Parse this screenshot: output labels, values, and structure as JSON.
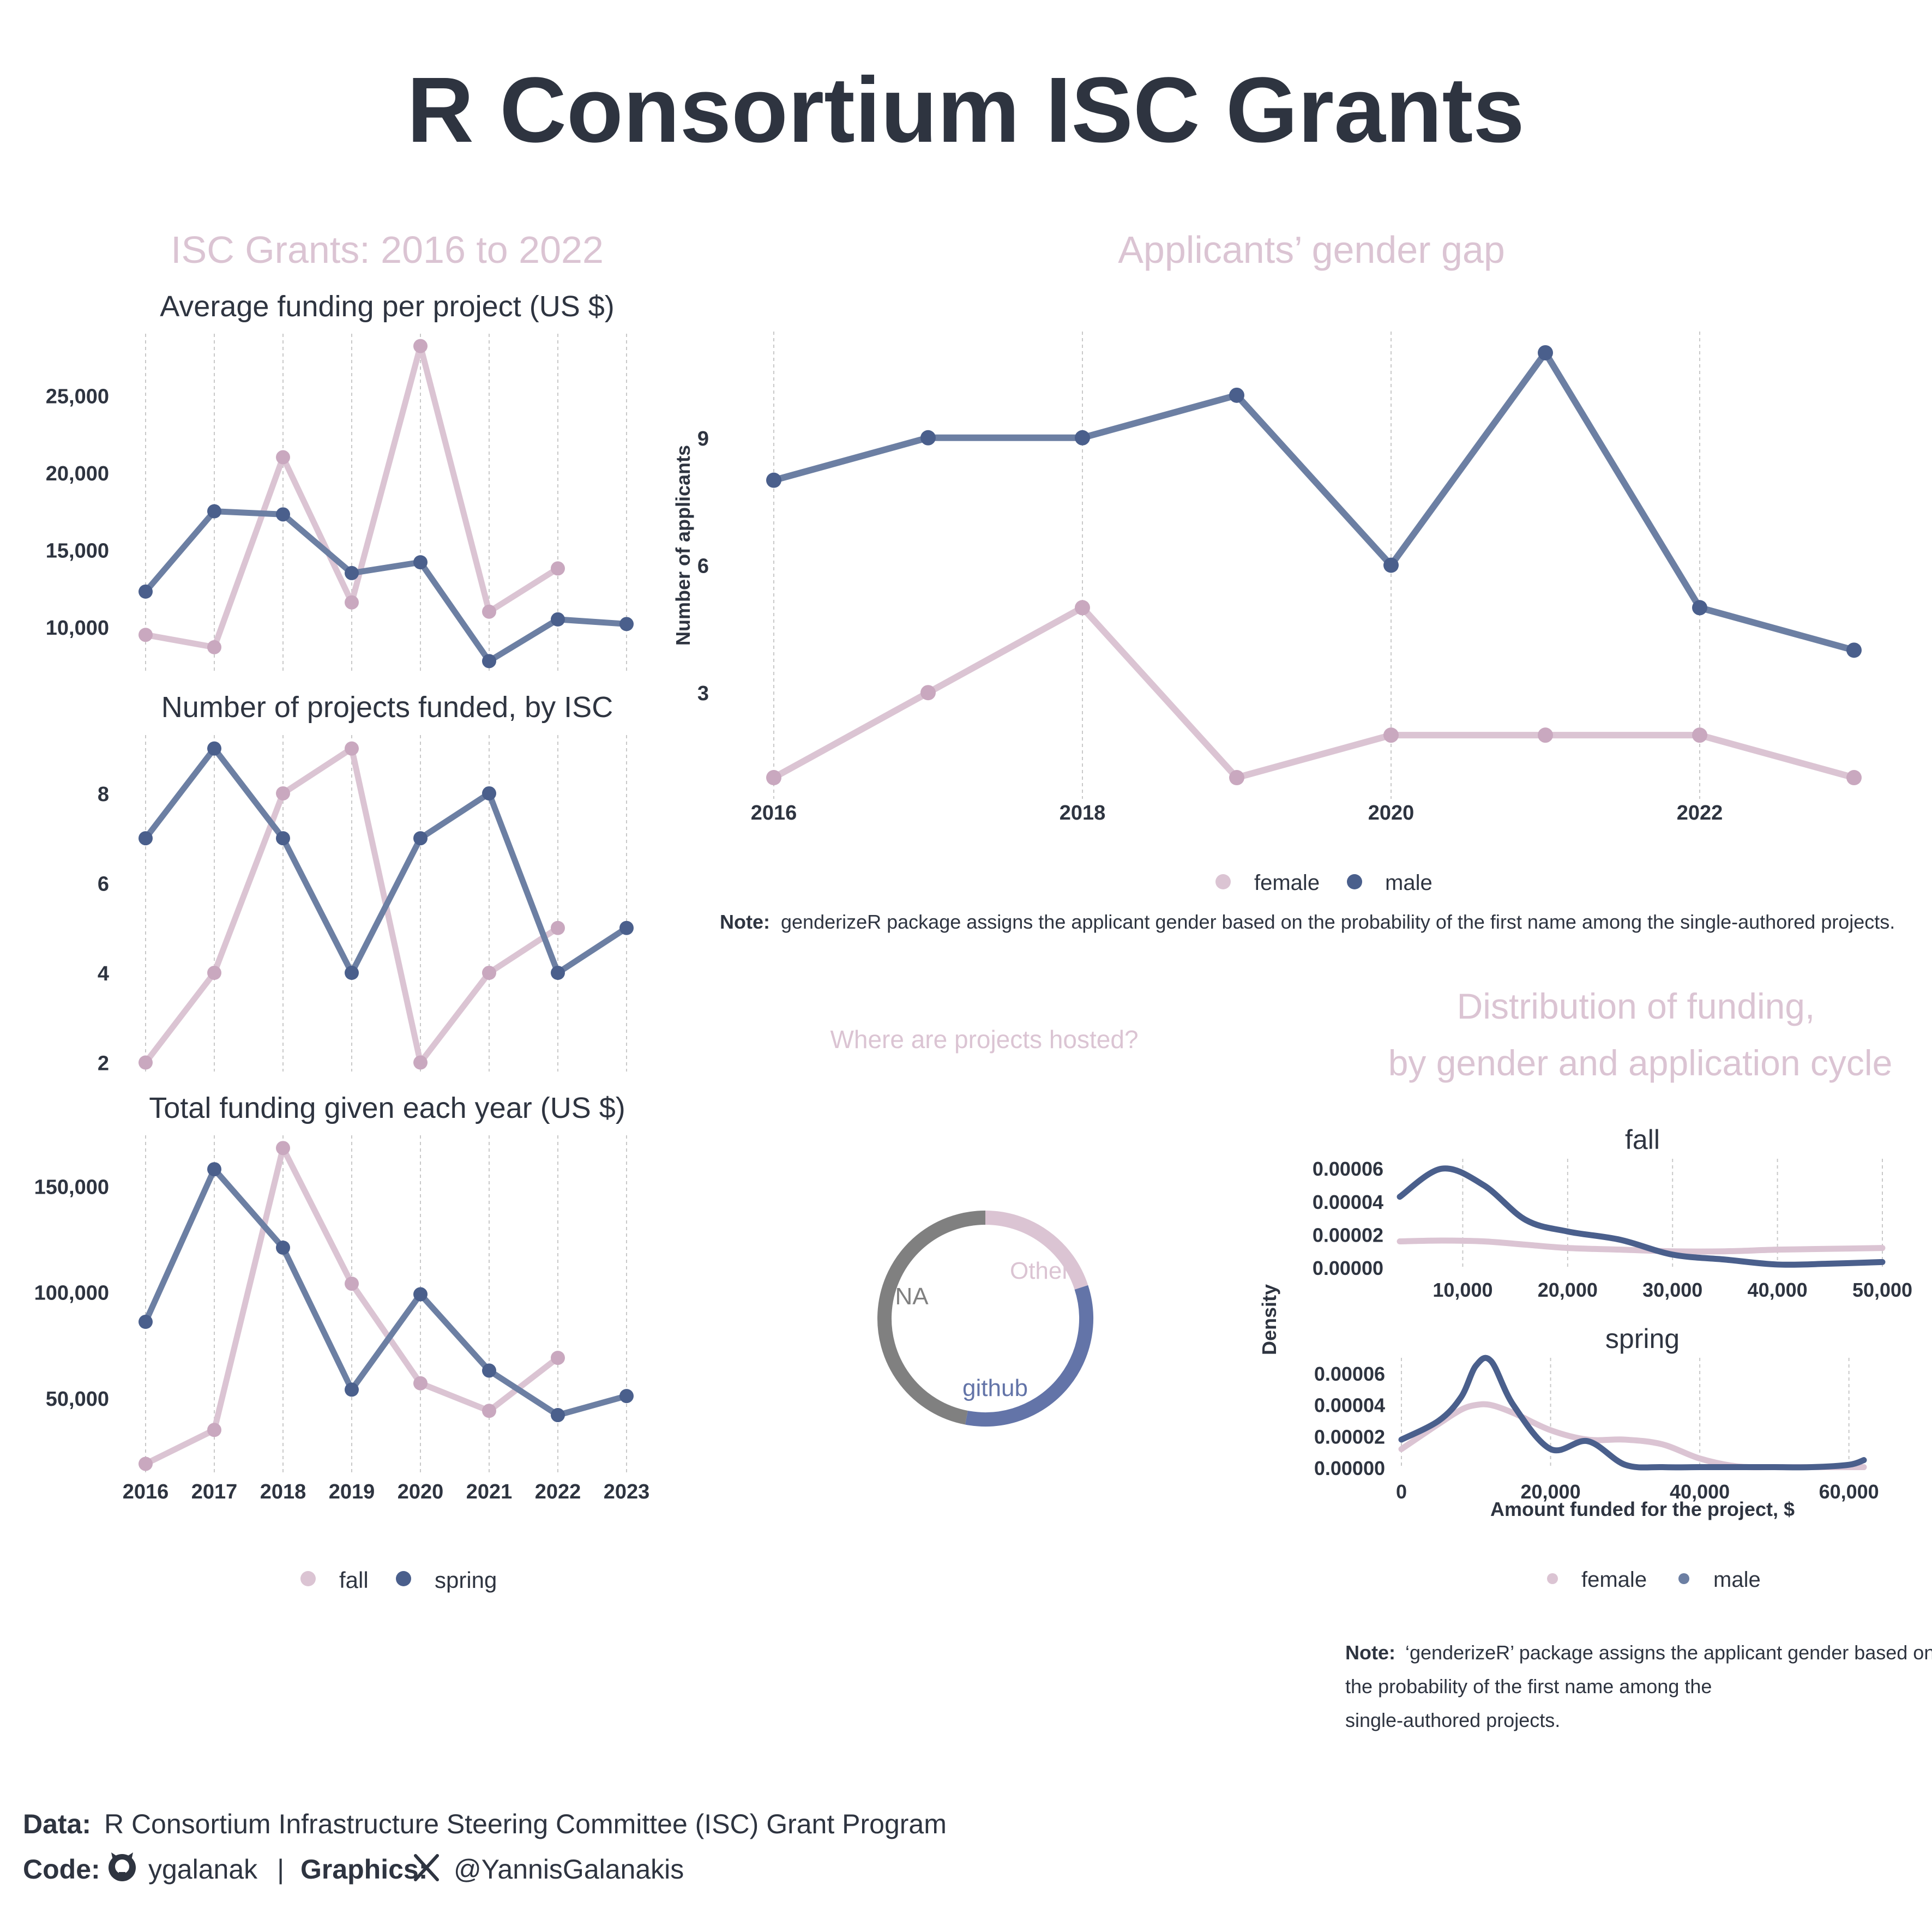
{
  "title": "R Consortium ISC Grants",
  "colors": {
    "ink": "#2e3440",
    "pink": "#dbc4d3",
    "pink_dark": "#c9a8bf",
    "blue": "#4a5f8c",
    "blue_line": "#6c7fa3",
    "grey": "#808080",
    "grid": "#c8c8c8"
  },
  "left_panel": {
    "heading": "ISC Grants: 2016 to 2022",
    "legend": [
      {
        "label": "fall",
        "color": "#dbc4d3"
      },
      {
        "label": "spring",
        "color": "#4a5f8c"
      }
    ]
  },
  "gender_panel": {
    "heading": "Applicants’ gender gap",
    "note_bold": "Note:",
    "note_text": "genderizeR package assigns the applicant gender based on the probability of the first name among the single-authored projects.",
    "legend": [
      {
        "label": "female",
        "color": "#dbc4d3"
      },
      {
        "label": "male",
        "color": "#4a5f8c"
      }
    ]
  },
  "hosting_panel": {
    "heading": "Where are projects hosted?"
  },
  "density_panel": {
    "heading_line1": "Distribution of funding,",
    "heading_line2": "by gender and application cycle",
    "legend": [
      {
        "label": "female",
        "color": "#dbc4d3"
      },
      {
        "label": "male",
        "color": "#4a5f8c"
      }
    ],
    "note_bold": "Note:",
    "note_line1": "‘genderizeR’ package assigns the applicant gender based on",
    "note_line2": "the probability of the first name among the",
    "note_line3": "single-authored projects."
  },
  "footer": {
    "data_label": "Data:",
    "data_text": "R Consortium Infrastructure Steering Committee (ISC) Grant Program",
    "code_label": "Code:",
    "code_user": "ygalanak",
    "sep": "|",
    "graphics_label": "Graphics:",
    "graphics_user": "@YannisGalanakis"
  },
  "chart_data": [
    {
      "type": "line",
      "title": "Average funding per project (US $)",
      "x": [
        2016,
        2017,
        2018,
        2019,
        2020,
        2021,
        2022,
        2023
      ],
      "series": [
        {
          "name": "fall",
          "values": [
            9500,
            8700,
            21000,
            11600,
            28200,
            11000,
            13800,
            null
          ]
        },
        {
          "name": "spring",
          "values": [
            12300,
            17500,
            17300,
            13500,
            14200,
            7800,
            10500,
            10200
          ]
        }
      ],
      "yticks": [
        10000,
        15000,
        20000,
        25000
      ],
      "ytick_labels": [
        "10,000",
        "15,000",
        "20,000",
        "25,000"
      ],
      "ylim": [
        7000,
        29000
      ]
    },
    {
      "type": "line",
      "title": "Number of projects funded, by ISC",
      "x": [
        2016,
        2017,
        2018,
        2019,
        2020,
        2021,
        2022,
        2023
      ],
      "series": [
        {
          "name": "fall",
          "values": [
            2,
            4,
            8,
            9,
            2,
            4,
            5,
            null
          ]
        },
        {
          "name": "spring",
          "values": [
            7,
            9,
            7,
            4,
            7,
            8,
            4,
            5
          ]
        }
      ],
      "yticks": [
        2,
        4,
        6,
        8
      ],
      "ytick_labels": [
        "2",
        "4",
        "6",
        "8"
      ],
      "ylim": [
        1.8,
        9.3
      ]
    },
    {
      "type": "line",
      "title": "Total funding given each year (US $)",
      "x": [
        2016,
        2017,
        2018,
        2019,
        2020,
        2021,
        2022,
        2023
      ],
      "x_labels": [
        "2016",
        "2017",
        "2018",
        "2019",
        "2020",
        "2021",
        "2022",
        "2023"
      ],
      "series": [
        {
          "name": "fall",
          "values": [
            19000,
            35000,
            168000,
            104000,
            57000,
            44000,
            69000,
            null
          ]
        },
        {
          "name": "spring",
          "values": [
            86000,
            158000,
            121000,
            54000,
            99000,
            63000,
            42000,
            51000
          ]
        }
      ],
      "yticks": [
        50000,
        100000,
        150000
      ],
      "ytick_labels": [
        "50,000",
        "100,000",
        "150,000"
      ],
      "ylim": [
        15000,
        174000
      ]
    },
    {
      "type": "line",
      "title": "Applicants’ gender gap",
      "ylabel": "Number of applicants",
      "x": [
        2016,
        2017,
        2018,
        2019,
        2020,
        2021,
        2022,
        2023
      ],
      "xticks": [
        2016,
        2018,
        2020,
        2022
      ],
      "x_labels": [
        "2016",
        "2018",
        "2020",
        "2022"
      ],
      "series": [
        {
          "name": "female",
          "values": [
            1,
            3,
            5,
            1,
            2,
            2,
            2,
            1
          ]
        },
        {
          "name": "male",
          "values": [
            8,
            9,
            9,
            10,
            6,
            11,
            5,
            4
          ]
        }
      ],
      "yticks": [
        3,
        6,
        9
      ],
      "ytick_labels": [
        "3",
        "6",
        "9"
      ],
      "ylim": [
        0.5,
        11.5
      ]
    },
    {
      "type": "pie",
      "title": "Where are projects hosted?",
      "categories": [
        "Other",
        "github",
        "NA"
      ],
      "values": [
        0.2,
        0.33,
        0.47
      ],
      "colors": [
        "#dbc4d3",
        "#6374a8",
        "#808080"
      ]
    },
    {
      "type": "area",
      "title": "fall",
      "ylabel": "Density",
      "x": [
        4000,
        8000,
        12000,
        16000,
        20000,
        25000,
        30000,
        35000,
        40000,
        45000,
        50000
      ],
      "series": [
        {
          "name": "female",
          "values": [
            1.6e-05,
            1.65e-05,
            1.6e-05,
            1.4e-05,
            1.2e-05,
            1.1e-05,
            1e-05,
            1e-05,
            1.1e-05,
            1.15e-05,
            1.2e-05
          ]
        },
        {
          "name": "male",
          "values": [
            4.3e-05,
            6e-05,
            5e-05,
            2.9e-05,
            2.2e-05,
            1.7e-05,
            8e-06,
            5e-06,
            2e-06,
            2.5e-06,
            3.5e-06
          ]
        }
      ],
      "xticks": [
        10000,
        20000,
        30000,
        40000,
        50000
      ],
      "x_labels": [
        "10,000",
        "20,000",
        "30,000",
        "40,000",
        "50,000"
      ],
      "yticks": [
        0,
        2e-05,
        4e-05,
        6e-05
      ],
      "ytick_labels": [
        "0.00000",
        "0.00002",
        "0.00004",
        "0.00006"
      ],
      "xlim": [
        4000,
        50000
      ],
      "ylim": [
        0,
        6.6e-05
      ]
    },
    {
      "type": "area",
      "title": "spring",
      "xlabel": "Amount funded for the project, $",
      "x": [
        0,
        5000,
        8000,
        10000,
        12000,
        15000,
        20000,
        25000,
        30000,
        35000,
        40000,
        45000,
        50000,
        55000,
        60000,
        62000
      ],
      "series": [
        {
          "name": "female",
          "values": [
            1.2e-05,
            2.8e-05,
            3.7e-05,
            4e-05,
            4e-05,
            3.5e-05,
            2.4e-05,
            1.8e-05,
            1.8e-05,
            1.5e-05,
            6e-06,
            1e-06,
            5e-07,
            5e-07,
            5e-07,
            5e-07
          ]
        },
        {
          "name": "male",
          "values": [
            1.8e-05,
            3e-05,
            4.5e-05,
            6.5e-05,
            6.8e-05,
            4e-05,
            1.2e-05,
            1.7e-05,
            2e-06,
            5e-07,
            5e-07,
            5e-07,
            5e-07,
            5e-07,
            2e-06,
            5e-06
          ]
        }
      ],
      "xticks": [
        0,
        20000,
        40000,
        60000
      ],
      "x_labels": [
        "0",
        "20,000",
        "40,000",
        "60,000"
      ],
      "yticks": [
        0,
        2e-05,
        4e-05,
        6e-05
      ],
      "ytick_labels": [
        "0.00000",
        "0.00002",
        "0.00004",
        "0.00006"
      ],
      "xlim": [
        0,
        62000
      ],
      "ylim": [
        0,
        7e-05
      ]
    }
  ]
}
